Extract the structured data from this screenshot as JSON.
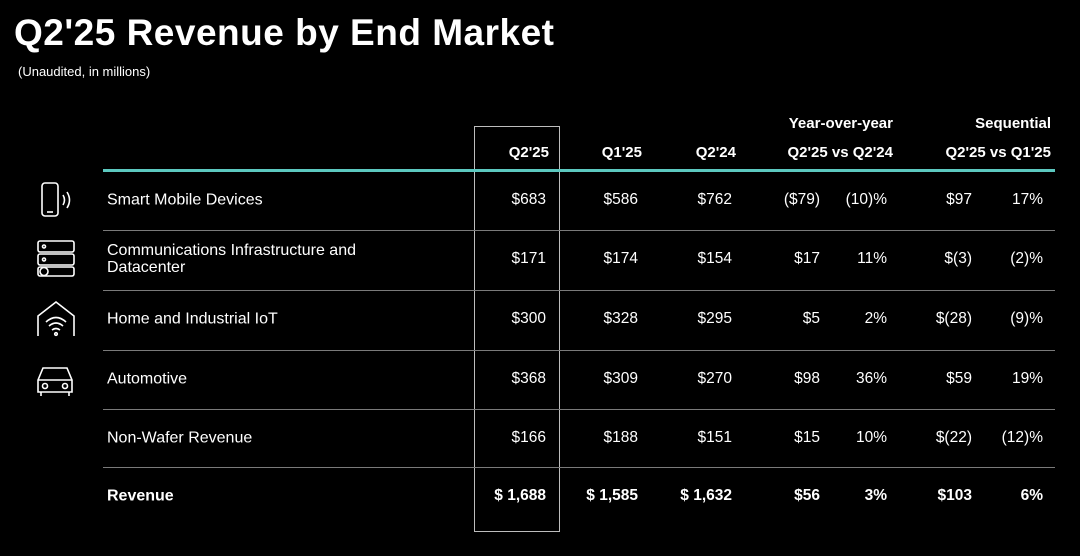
{
  "header": {
    "title": "Q2'25 Revenue by End Market",
    "subtitle": "(Unaudited, in millions)"
  },
  "table": {
    "group_headers": [
      "Year-over-year",
      "Sequential"
    ],
    "columns": [
      "Q2'25",
      "Q1'25",
      "Q2'24",
      "Q2'25 vs Q2'24",
      "Q2'25 vs Q1'25"
    ],
    "rows": [
      [
        "Smart Mobile Devices",
        "$683",
        "$586",
        "$762",
        "($79)",
        "(10)%",
        "$97",
        "17%"
      ],
      [
        "Communications Infrastructure and Datacenter",
        "$171",
        "$174",
        "$154",
        "$17",
        "11%",
        "$(3)",
        "(2)%"
      ],
      [
        "Home and Industrial IoT",
        "$300",
        "$328",
        "$295",
        "$5",
        "2%",
        "$(28)",
        "(9)%"
      ],
      [
        "Automotive",
        "$368",
        "$309",
        "$270",
        "$98",
        "36%",
        "$59",
        "19%"
      ],
      [
        "Non-Wafer Revenue",
        "$166",
        "$188",
        "$151",
        "$15",
        "10%",
        "$(22)",
        "(12)%"
      ],
      [
        "Revenue",
        "$ 1,688",
        "$ 1,585",
        "$ 1,632",
        "$56",
        "3%",
        "$103",
        "6%"
      ]
    ]
  }
}
